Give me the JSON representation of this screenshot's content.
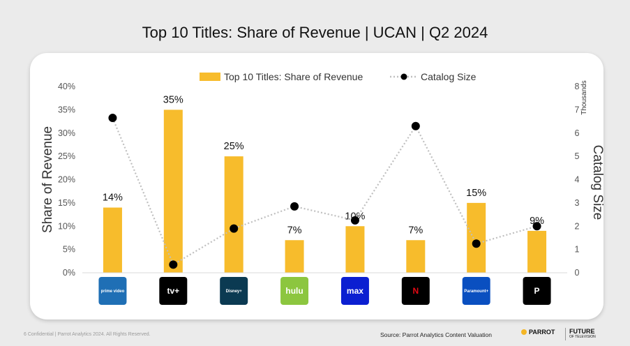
{
  "title": "Top 10 Titles: Share of Revenue | UCAN | Q2 2024",
  "footer": {
    "left": "6  Confidential  |  Parrot Analytics 2024. All Rights Reserved.",
    "source": "Source: Parrot Analytics Content Valuation",
    "brand_parrot": "PARROT",
    "brand_future": "FUTURE",
    "brand_future_sub": "OF TELEVISION"
  },
  "colors": {
    "bar": "#f7bc2c",
    "line": "#bfbfbf",
    "marker": "#000000",
    "axis_text": "#555555"
  },
  "chart_data": {
    "type": "bar",
    "categories": [
      "prime video",
      "tv+",
      "Disney+",
      "hulu",
      "max",
      "N",
      "Paramount+",
      "P"
    ],
    "category_icons": [
      "prime-video-logo",
      "apple-tv-logo",
      "disney-plus-logo",
      "hulu-logo",
      "max-logo",
      "netflix-logo",
      "paramount-plus-logo",
      "peacock-logo"
    ],
    "category_colors": [
      "#1f6fb5",
      "#000000",
      "#0b3a52",
      "#8cc63f",
      "#0b1fd1",
      "#000000",
      "#0a4fc0",
      "#000000"
    ],
    "series": [
      {
        "name": "Top 10 Titles: Share of Revenue",
        "type": "bar",
        "axis": "left",
        "values": [
          14,
          35,
          25,
          7,
          10,
          7,
          15,
          9
        ],
        "labels": [
          "14%",
          "35%",
          "25%",
          "7%",
          "10%",
          "7%",
          "15%",
          "9%"
        ]
      },
      {
        "name": "Catalog Size",
        "type": "line",
        "axis": "right",
        "values": [
          6.65,
          0.35,
          1.9,
          2.85,
          2.25,
          6.3,
          1.25,
          2.0
        ]
      }
    ],
    "ylabel": "Share of Revenue",
    "ylim": [
      0,
      40
    ],
    "yticks": [
      "0%",
      "5%",
      "10%",
      "15%",
      "20%",
      "25%",
      "30%",
      "35%",
      "40%"
    ],
    "y2label": "Catalog Size",
    "y2unit": "Thousands",
    "y2lim": [
      0,
      8
    ],
    "y2ticks": [
      "0",
      "1",
      "2",
      "3",
      "4",
      "5",
      "6",
      "7",
      "8"
    ],
    "legend_position": "top",
    "grid": false
  }
}
